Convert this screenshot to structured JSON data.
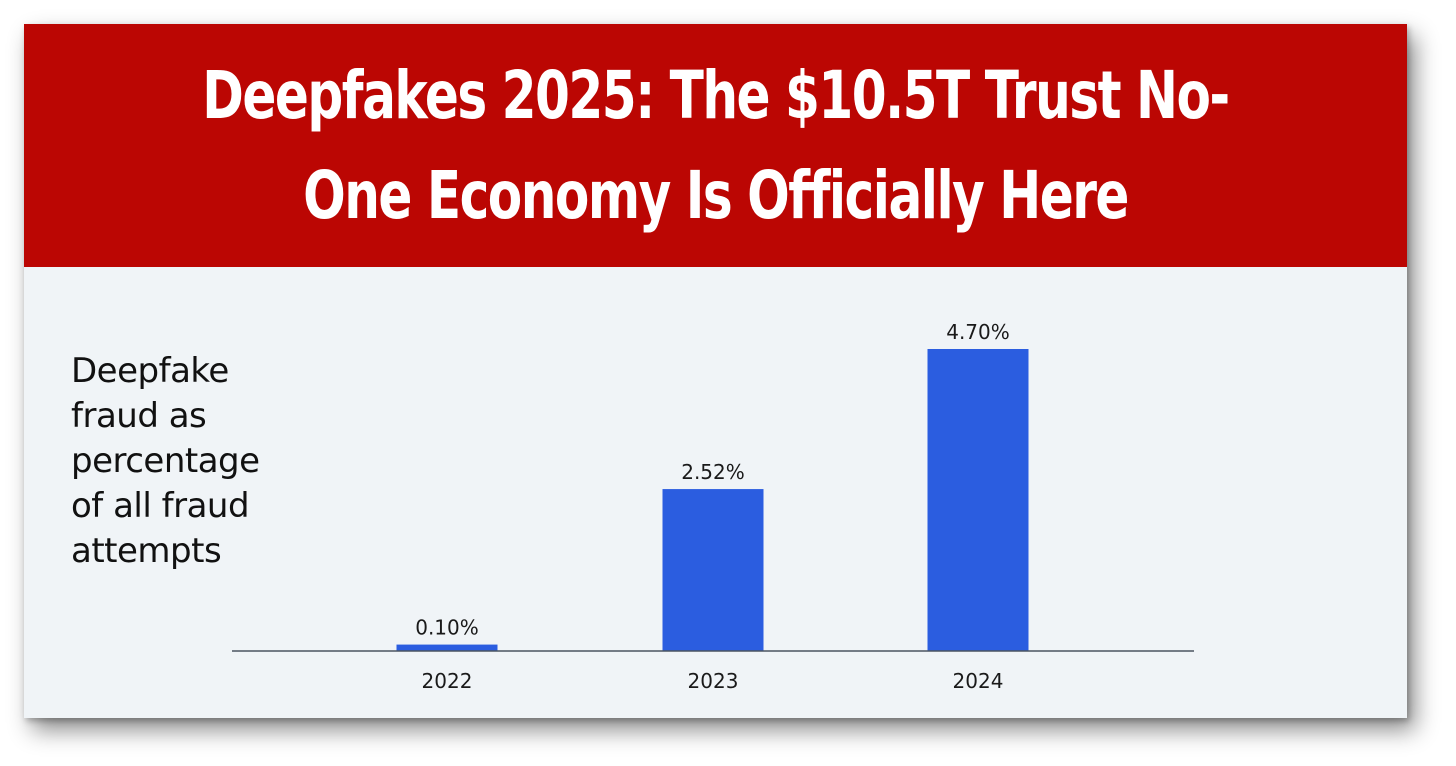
{
  "headline": {
    "line1": "Deepfakes 2025: The $10.5T Trust No-",
    "line2": "One Economy Is Officially Here"
  },
  "colors": {
    "banner": "#bb0603",
    "bar": "#2b5de0",
    "panel": "#f0f4f7"
  },
  "chart_data": {
    "type": "bar",
    "title": "Deepfake\nfraud as\npercentage\nof all fraud\nattempts",
    "categories": [
      "2022",
      "2023",
      "2024"
    ],
    "values": [
      0.1,
      2.52,
      4.7
    ],
    "value_labels": [
      "0.10%",
      "2.52%",
      "4.70%"
    ],
    "xlabel": "",
    "ylabel": "",
    "ylim": [
      0,
      4.7
    ],
    "grid": false,
    "legend": "none"
  }
}
